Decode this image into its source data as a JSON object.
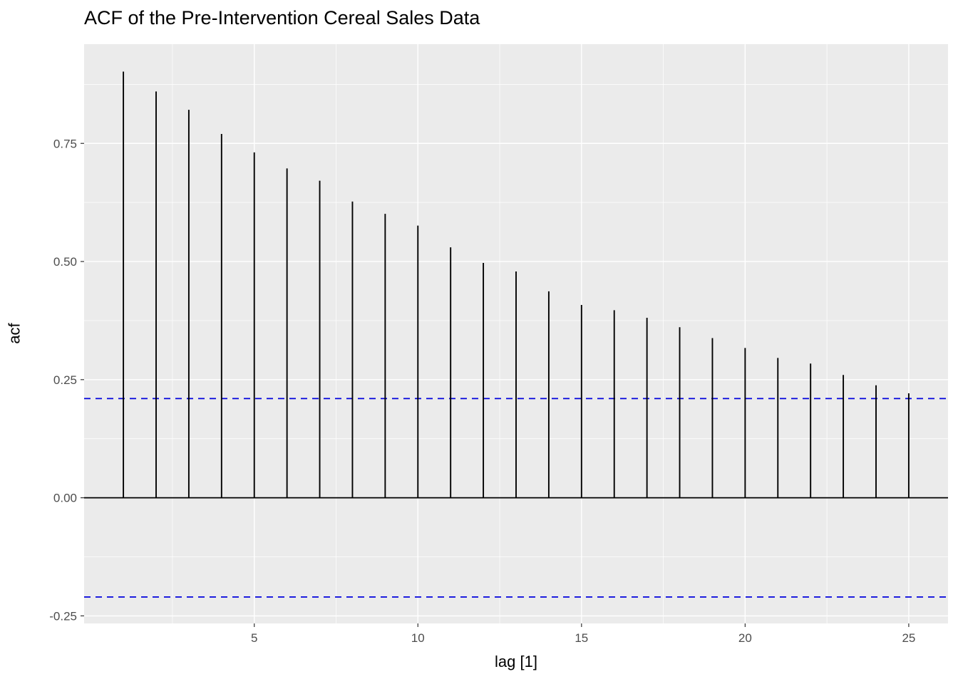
{
  "chart_data": {
    "type": "bar",
    "subtype": "acf-spike-plot",
    "title": "ACF of the Pre-Intervention Cereal Sales Data",
    "xlabel": "lag [1]",
    "ylabel": "acf",
    "x": [
      1,
      2,
      3,
      4,
      5,
      6,
      7,
      8,
      9,
      10,
      11,
      12,
      13,
      14,
      15,
      16,
      17,
      18,
      19,
      20,
      21,
      22,
      23,
      24,
      25
    ],
    "values": [
      0.902,
      0.86,
      0.821,
      0.77,
      0.731,
      0.697,
      0.671,
      0.627,
      0.601,
      0.576,
      0.53,
      0.497,
      0.479,
      0.437,
      0.408,
      0.397,
      0.381,
      0.361,
      0.338,
      0.317,
      0.296,
      0.284,
      0.26,
      0.238,
      0.221
    ],
    "confidence_bounds": [
      0.21,
      -0.21
    ],
    "zero_line": 0,
    "xlim": [
      -0.2,
      26.2
    ],
    "ylim": [
      -0.266,
      0.96
    ],
    "x_ticks": [
      5,
      10,
      15,
      20,
      25
    ],
    "x_tick_labels": [
      "5",
      "10",
      "15",
      "20",
      "25"
    ],
    "y_ticks": [
      -0.25,
      0,
      0.25,
      0.5,
      0.75
    ],
    "y_tick_labels": [
      "-0.25",
      "0.00",
      "0.25",
      "0.50",
      "0.75"
    ],
    "x_minor": [
      2.5,
      7.5,
      12.5,
      17.5,
      22.5
    ],
    "y_minor": [
      -0.125,
      0.125,
      0.375,
      0.625,
      0.875
    ],
    "grid": "on",
    "legend": "none",
    "colors": {
      "panel_bg": "#EBEBEB",
      "grid_major": "#FFFFFF",
      "grid_minor": "#FFFFFF",
      "spike": "#000000",
      "zero_line": "#000000",
      "confidence_line": "#0000DD",
      "tick_label": "#4D4D4D",
      "tick_mark": "#333333"
    }
  }
}
